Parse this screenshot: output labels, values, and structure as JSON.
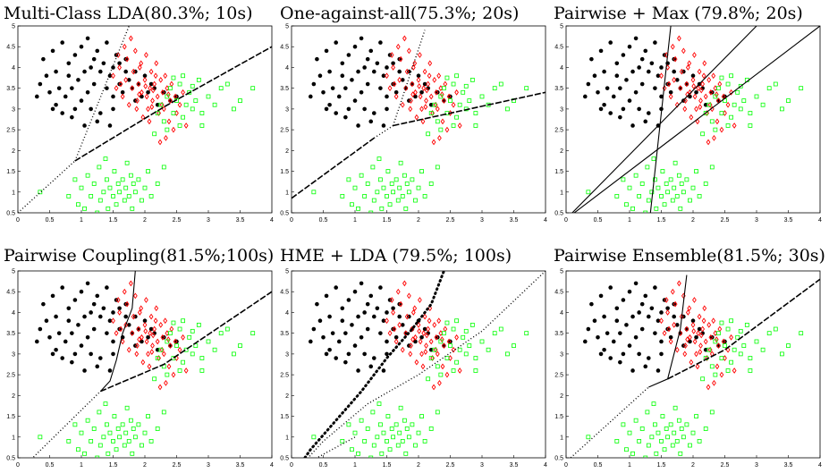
{
  "chart_data": [
    {
      "type": "scatter",
      "title": "Multi-Class LDA(80.3%; 10s)",
      "xlim": [
        0,
        4
      ],
      "ylim": [
        0.5,
        5
      ],
      "xticks": [
        "0",
        "0.5",
        "1",
        "1.5",
        "2",
        "2.5",
        "3",
        "3.5",
        "4"
      ],
      "yticks": [
        "0.5",
        "1",
        "1.5",
        "2",
        "2.5",
        "3",
        "3.5",
        "4",
        "4.5",
        "5"
      ],
      "boundaries": [
        {
          "style": "dotted",
          "points": [
            [
              0.0,
              0.5
            ],
            [
              0.9,
              1.75
            ]
          ]
        },
        {
          "style": "dotted",
          "points": [
            [
              0.9,
              1.75
            ],
            [
              1.75,
              5.0
            ]
          ]
        },
        {
          "style": "dashed",
          "points": [
            [
              0.9,
              1.75
            ],
            [
              2.3,
              3.05
            ],
            [
              4.0,
              4.5
            ]
          ]
        }
      ]
    },
    {
      "type": "scatter",
      "title": "One-against-all(75.3%; 20s)",
      "xlim": [
        0,
        4
      ],
      "ylim": [
        0.5,
        5
      ],
      "xticks": [
        "0",
        "0.5",
        "1",
        "1.5",
        "2",
        "2.5",
        "3",
        "3.5",
        "4"
      ],
      "yticks": [
        "0.5",
        "1",
        "1.5",
        "2",
        "2.5",
        "3",
        "3.5",
        "4",
        "4.5",
        "5"
      ],
      "boundaries": [
        {
          "style": "dashed",
          "points": [
            [
              0.0,
              0.85
            ],
            [
              1.3,
              2.3
            ]
          ]
        },
        {
          "style": "dotted",
          "points": [
            [
              1.3,
              2.3
            ],
            [
              1.6,
              2.6
            ]
          ]
        },
        {
          "style": "dotted",
          "points": [
            [
              1.6,
              2.6
            ],
            [
              2.1,
              4.9
            ]
          ]
        },
        {
          "style": "dashed",
          "points": [
            [
              1.6,
              2.6
            ],
            [
              4.0,
              3.4
            ]
          ]
        }
      ]
    },
    {
      "type": "scatter",
      "title": "Pairwise + Max (79.8%; 20s)",
      "xlim": [
        0,
        4
      ],
      "ylim": [
        0.5,
        5
      ],
      "xticks": [
        "0",
        "0.5",
        "1",
        "1.5",
        "2",
        "2.5",
        "3",
        "3.5",
        "4"
      ],
      "yticks": [
        "0.5",
        "1",
        "1.5",
        "2",
        "2.5",
        "3",
        "3.5",
        "4",
        "4.5",
        "5"
      ],
      "boundaries": [
        {
          "style": "solid",
          "points": [
            [
              0.0,
              0.35
            ],
            [
              3.0,
              5.0
            ]
          ]
        },
        {
          "style": "solid",
          "points": [
            [
              0.0,
              0.35
            ],
            [
              4.0,
              5.0
            ]
          ]
        },
        {
          "style": "solid",
          "points": [
            [
              1.3,
              0.1
            ],
            [
              1.65,
              5.0
            ]
          ]
        }
      ]
    },
    {
      "type": "scatter",
      "title": "Pairwise Coupling(81.5%;100s)",
      "xlim": [
        0,
        4
      ],
      "ylim": [
        0.5,
        5
      ],
      "xticks": [
        "0",
        "0.5",
        "1",
        "1.5",
        "2",
        "2.5",
        "3",
        "3.5",
        "4"
      ],
      "yticks": [
        "0.5",
        "1",
        "1.5",
        "2",
        "2.5",
        "3",
        "3.5",
        "4",
        "4.5",
        "5"
      ],
      "boundaries": [
        {
          "style": "dotted",
          "points": [
            [
              0.0,
              0.15
            ],
            [
              1.3,
              2.1
            ]
          ]
        },
        {
          "style": "solid",
          "points": [
            [
              1.3,
              2.1
            ],
            [
              1.45,
              2.35
            ],
            [
              1.55,
              2.85
            ],
            [
              1.65,
              3.5
            ],
            [
              1.8,
              4.1
            ],
            [
              1.85,
              5.0
            ]
          ]
        },
        {
          "style": "dashed",
          "points": [
            [
              1.3,
              2.1
            ],
            [
              2.3,
              2.75
            ],
            [
              4.0,
              4.5
            ]
          ]
        }
      ]
    },
    {
      "type": "scatter",
      "title": "HME + LDA (79.5%; 100s)",
      "xlim": [
        0,
        4
      ],
      "ylim": [
        0.5,
        5
      ],
      "xticks": [
        "0",
        "0.5",
        "1",
        "1.5",
        "2",
        "2.5",
        "3",
        "3.5",
        "4"
      ],
      "yticks": [
        "0.5",
        "1",
        "1.5",
        "2",
        "2.5",
        "3",
        "3.5",
        "4",
        "4.5",
        "5"
      ],
      "boundaries": [
        {
          "style": "bold-dotted",
          "points": [
            [
              0.05,
              0.15
            ],
            [
              0.3,
              0.7
            ],
            [
              0.7,
              1.4
            ],
            [
              1.1,
              2.1
            ],
            [
              1.5,
              2.9
            ],
            [
              1.9,
              3.6
            ],
            [
              2.2,
              4.2
            ],
            [
              2.4,
              5.0
            ]
          ]
        },
        {
          "style": "dotted",
          "points": [
            [
              0.05,
              0.15
            ],
            [
              0.5,
              0.9
            ],
            [
              1.2,
              1.8
            ],
            [
              2.0,
              2.5
            ],
            [
              3.0,
              3.55
            ],
            [
              4.0,
              5.0
            ]
          ]
        },
        {
          "style": "dotted",
          "points": [
            [
              0.05,
              0.15
            ],
            [
              0.4,
              0.5
            ],
            [
              1.0,
              1.0
            ]
          ]
        }
      ]
    },
    {
      "type": "scatter",
      "title": "Pairwise Ensemble(81.5%; 30s)",
      "xlim": [
        0,
        4
      ],
      "ylim": [
        0.5,
        5
      ],
      "xticks": [
        "0",
        "0.5",
        "1",
        "1.5",
        "2",
        "2.5",
        "3",
        "3.5",
        "4"
      ],
      "yticks": [
        "0.5",
        "1",
        "1.5",
        "2",
        "2.5",
        "3",
        "3.5",
        "4",
        "4.5",
        "5"
      ],
      "boundaries": [
        {
          "style": "dotted",
          "points": [
            [
              0.0,
              0.4
            ],
            [
              1.3,
              2.2
            ]
          ]
        },
        {
          "style": "solid",
          "points": [
            [
              1.3,
              2.2
            ],
            [
              1.6,
              2.4
            ],
            [
              1.7,
              3.0
            ],
            [
              1.8,
              3.6
            ],
            [
              1.9,
              4.9
            ]
          ]
        },
        {
          "style": "dashed",
          "points": [
            [
              1.6,
              2.4
            ],
            [
              2.5,
              3.1
            ],
            [
              4.0,
              4.8
            ]
          ]
        }
      ]
    }
  ],
  "classes": [
    {
      "marker": "dot",
      "color": "#000000",
      "points": [
        [
          0.3,
          3.3
        ],
        [
          0.35,
          3.6
        ],
        [
          0.4,
          4.2
        ],
        [
          0.45,
          3.8
        ],
        [
          0.5,
          3.4
        ],
        [
          0.55,
          4.4
        ],
        [
          0.6,
          3.1
        ],
        [
          0.6,
          3.9
        ],
        [
          0.65,
          3.5
        ],
        [
          0.7,
          4.6
        ],
        [
          0.7,
          2.9
        ],
        [
          0.75,
          3.3
        ],
        [
          0.8,
          3.8
        ],
        [
          0.8,
          4.1
        ],
        [
          0.85,
          2.8
        ],
        [
          0.85,
          3.5
        ],
        [
          0.9,
          4.3
        ],
        [
          0.9,
          3.0
        ],
        [
          0.95,
          3.7
        ],
        [
          1.0,
          4.5
        ],
        [
          1.0,
          3.2
        ],
        [
          1.05,
          2.6
        ],
        [
          1.05,
          3.9
        ],
        [
          1.1,
          4.7
        ],
        [
          1.1,
          3.4
        ],
        [
          1.15,
          3.0
        ],
        [
          1.2,
          4.2
        ],
        [
          1.2,
          3.6
        ],
        [
          1.25,
          4.4
        ],
        [
          1.3,
          3.9
        ],
        [
          1.3,
          2.9
        ],
        [
          1.35,
          4.1
        ],
        [
          1.4,
          3.5
        ],
        [
          1.4,
          4.6
        ],
        [
          1.45,
          3.8
        ],
        [
          1.5,
          4.0
        ],
        [
          1.5,
          3.3
        ],
        [
          1.55,
          4.3
        ],
        [
          1.6,
          3.6
        ],
        [
          1.6,
          4.1
        ],
        [
          1.65,
          3.4
        ],
        [
          1.7,
          3.9
        ],
        [
          1.7,
          4.2
        ],
        [
          1.75,
          3.7
        ],
        [
          1.8,
          3.5
        ],
        [
          1.85,
          3.2
        ],
        [
          1.9,
          3.6
        ],
        [
          2.0,
          3.8
        ],
        [
          2.05,
          3.4
        ],
        [
          2.1,
          3.6
        ],
        [
          2.2,
          3.1
        ],
        [
          2.3,
          3.4
        ],
        [
          2.4,
          3.2
        ],
        [
          2.5,
          3.3
        ],
        [
          1.45,
          2.6
        ],
        [
          1.5,
          3.0
        ],
        [
          1.95,
          3.3
        ],
        [
          2.15,
          3.5
        ],
        [
          1.25,
          2.7
        ],
        [
          1.85,
          3.9
        ],
        [
          0.55,
          3.0
        ],
        [
          1.15,
          4.0
        ]
      ]
    },
    {
      "marker": "diamond",
      "color": "#ff0000",
      "points": [
        [
          1.5,
          3.8
        ],
        [
          1.55,
          3.5
        ],
        [
          1.6,
          4.0
        ],
        [
          1.65,
          3.3
        ],
        [
          1.7,
          3.7
        ],
        [
          1.72,
          4.2
        ],
        [
          1.75,
          3.1
        ],
        [
          1.8,
          3.5
        ],
        [
          1.82,
          3.9
        ],
        [
          1.85,
          4.4
        ],
        [
          1.88,
          3.2
        ],
        [
          1.9,
          3.6
        ],
        [
          1.92,
          4.0
        ],
        [
          1.95,
          3.4
        ],
        [
          1.97,
          2.8
        ],
        [
          2.0,
          3.7
        ],
        [
          2.02,
          4.3
        ],
        [
          2.05,
          3.0
        ],
        [
          2.08,
          3.5
        ],
        [
          2.1,
          3.9
        ],
        [
          2.12,
          3.2
        ],
        [
          2.15,
          3.6
        ],
        [
          2.18,
          4.1
        ],
        [
          2.2,
          3.3
        ],
        [
          2.22,
          2.9
        ],
        [
          2.25,
          3.7
        ],
        [
          2.28,
          3.4
        ],
        [
          2.3,
          3.0
        ],
        [
          2.32,
          3.8
        ],
        [
          2.35,
          3.5
        ],
        [
          2.38,
          2.7
        ],
        [
          2.4,
          3.2
        ],
        [
          2.42,
          3.6
        ],
        [
          2.45,
          2.5
        ],
        [
          2.48,
          3.3
        ],
        [
          2.5,
          2.9
        ],
        [
          2.55,
          3.1
        ],
        [
          2.6,
          3.4
        ],
        [
          2.65,
          2.6
        ],
        [
          1.78,
          4.7
        ],
        [
          1.68,
          4.5
        ],
        [
          1.62,
          3.6
        ],
        [
          1.87,
          3.0
        ],
        [
          2.03,
          3.3
        ],
        [
          2.17,
          3.8
        ],
        [
          2.27,
          3.1
        ],
        [
          2.33,
          2.3
        ],
        [
          1.94,
          4.1
        ],
        [
          2.07,
          2.7
        ],
        [
          2.13,
          3.45
        ],
        [
          1.58,
          4.3
        ],
        [
          2.37,
          3.35
        ],
        [
          2.24,
          2.2
        ],
        [
          2.01,
          3.55
        ],
        [
          1.91,
          3.35
        ],
        [
          2.11,
          3.05
        ]
      ]
    },
    {
      "marker": "square",
      "color": "#00ff00",
      "points": [
        [
          0.35,
          1.0
        ],
        [
          0.8,
          0.9
        ],
        [
          0.9,
          1.3
        ],
        [
          0.95,
          0.7
        ],
        [
          1.0,
          1.1
        ],
        [
          1.05,
          0.6
        ],
        [
          1.1,
          1.4
        ],
        [
          1.15,
          0.9
        ],
        [
          1.2,
          1.2
        ],
        [
          1.25,
          0.5
        ],
        [
          1.28,
          1.6
        ],
        [
          1.3,
          0.8
        ],
        [
          1.35,
          1.0
        ],
        [
          1.4,
          1.3
        ],
        [
          1.42,
          0.6
        ],
        [
          1.45,
          1.1
        ],
        [
          1.5,
          0.9
        ],
        [
          1.52,
          1.5
        ],
        [
          1.55,
          0.7
        ],
        [
          1.58,
          1.2
        ],
        [
          1.6,
          1.0
        ],
        [
          1.62,
          0.4
        ],
        [
          1.65,
          1.3
        ],
        [
          1.68,
          0.8
        ],
        [
          1.7,
          1.1
        ],
        [
          1.72,
          1.7
        ],
        [
          1.75,
          0.9
        ],
        [
          1.78,
          1.4
        ],
        [
          1.8,
          0.6
        ],
        [
          1.82,
          1.2
        ],
        [
          1.85,
          1.0
        ],
        [
          1.9,
          1.3
        ],
        [
          1.95,
          0.8
        ],
        [
          2.0,
          1.1
        ],
        [
          2.05,
          1.5
        ],
        [
          2.1,
          0.9
        ],
        [
          2.2,
          1.2
        ],
        [
          2.3,
          1.6
        ],
        [
          1.38,
          1.8
        ],
        [
          1.48,
          0.3
        ],
        [
          1.12,
          0.4
        ],
        [
          2.15,
          2.4
        ],
        [
          2.2,
          2.9
        ],
        [
          2.25,
          3.1
        ],
        [
          2.3,
          2.7
        ],
        [
          2.35,
          3.3
        ],
        [
          2.4,
          3.5
        ],
        [
          2.45,
          2.9
        ],
        [
          2.5,
          3.2
        ],
        [
          2.55,
          3.6
        ],
        [
          2.6,
          2.8
        ],
        [
          2.65,
          3.1
        ],
        [
          2.7,
          3.4
        ],
        [
          2.75,
          3.0
        ],
        [
          2.8,
          3.2
        ],
        [
          2.85,
          3.7
        ],
        [
          2.9,
          2.9
        ],
        [
          3.0,
          3.3
        ],
        [
          3.1,
          3.1
        ],
        [
          3.2,
          3.5
        ],
        [
          3.4,
          3.0
        ],
        [
          3.5,
          3.2
        ],
        [
          3.7,
          3.5
        ],
        [
          2.35,
          2.5
        ],
        [
          2.6,
          3.8
        ],
        [
          2.9,
          2.6
        ],
        [
          3.3,
          3.6
        ],
        [
          2.55,
          2.6
        ],
        [
          2.75,
          3.55
        ],
        [
          2.45,
          3.75
        ]
      ]
    }
  ]
}
